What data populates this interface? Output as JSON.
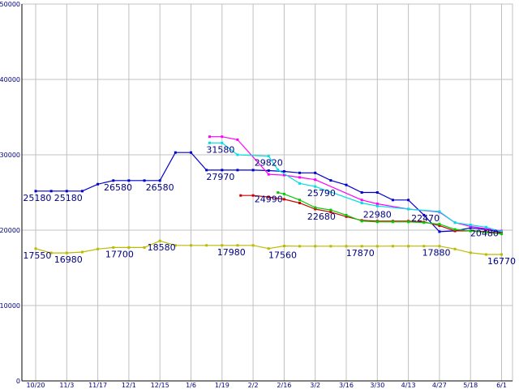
{
  "chart_data": {
    "type": "line",
    "ylim": [
      0,
      50000
    ],
    "grid": true,
    "yticks": [
      0,
      10000,
      20000,
      30000,
      40000,
      50000
    ],
    "xtick_labels": [
      "10/20",
      "11/3",
      "11/17",
      "12/1",
      "12/15",
      "1/6",
      "1/19",
      "2/2",
      "2/16",
      "3/2",
      "3/16",
      "3/30",
      "4/13",
      "4/27",
      "5/18",
      "6/1"
    ],
    "series": [
      {
        "color": "#0000cc",
        "x": [
          0,
          0.5,
          1,
          1.5,
          2,
          2.5,
          3,
          3.5,
          4,
          4.5,
          5,
          5.5,
          6,
          6.5,
          7,
          7.5,
          8,
          8.5,
          9,
          9.5,
          10,
          10.5,
          11,
          11.5,
          12,
          12.5,
          13,
          13.5,
          14,
          14.5,
          15
        ],
        "values": [
          25180,
          25180,
          25180,
          25180,
          26100,
          26580,
          26580,
          26580,
          26580,
          30300,
          30300,
          27970,
          27970,
          27970,
          27970,
          27900,
          27800,
          27600,
          27600,
          26600,
          26000,
          25000,
          25000,
          24000,
          24000,
          22000,
          19800,
          19900,
          20300,
          20100,
          19700
        ]
      },
      {
        "color": "#ff00ff",
        "x": [
          5.6,
          6.0,
          6.5,
          7.5,
          8.0,
          8.5,
          9.0,
          10.5,
          11.0,
          12.0,
          13.0,
          13.5,
          14.0,
          14.5,
          15.0
        ],
        "values": [
          32400,
          32400,
          32000,
          27400,
          27300,
          27000,
          26700,
          24000,
          23500,
          22800,
          22400,
          21000,
          20500,
          20200,
          19900
        ]
      },
      {
        "color": "#00e0e0",
        "x": [
          5.6,
          6.0,
          6.5,
          7.5,
          7.8,
          8.5,
          9.0,
          10.5,
          11.0,
          12.0,
          13.0,
          13.5,
          14.0,
          14.5,
          15.0
        ],
        "values": [
          31580,
          31580,
          30000,
          29820,
          28000,
          26200,
          25790,
          23600,
          23200,
          22800,
          22470,
          21000,
          20700,
          20400,
          19800
        ]
      },
      {
        "color": "#cc0000",
        "x": [
          6.6,
          7.0,
          7.5,
          8.0,
          8.5,
          9.0,
          9.5,
          10.0,
          10.5,
          11.0,
          11.5,
          12.0,
          12.5,
          13.0,
          13.5,
          14.0,
          14.5,
          15.0
        ],
        "values": [
          24600,
          24600,
          24400,
          24100,
          23600,
          22800,
          22400,
          21800,
          21300,
          21200,
          21200,
          21200,
          21100,
          20600,
          19900,
          19900,
          19800,
          19600
        ]
      },
      {
        "color": "#00cc00",
        "x": [
          7.8,
          8.0,
          8.5,
          9.0,
          9.5,
          10.0,
          10.5,
          11.0,
          11.5,
          12.0,
          12.5,
          13.0,
          13.5,
          14.0,
          14.5,
          15.0
        ],
        "values": [
          24990,
          24800,
          24000,
          23000,
          22680,
          22000,
          21200,
          21100,
          21100,
          21100,
          21000,
          20800,
          20100,
          19900,
          19700,
          19500
        ]
      },
      {
        "color": "#bbbb00",
        "x": [
          0,
          0.5,
          1,
          1.5,
          2,
          2.5,
          3,
          3.5,
          4,
          4.5,
          5,
          5.5,
          6,
          6.5,
          7,
          7.5,
          8,
          8.5,
          9,
          9.5,
          10,
          10.5,
          11,
          11.5,
          12,
          12.5,
          13,
          13.5,
          14,
          14.5,
          15
        ],
        "values": [
          17550,
          16980,
          16980,
          17100,
          17500,
          17700,
          17700,
          17700,
          18580,
          17980,
          17980,
          17980,
          17980,
          17980,
          17980,
          17560,
          17900,
          17870,
          17870,
          17870,
          17870,
          17870,
          17870,
          17880,
          17880,
          17880,
          17880,
          17500,
          17000,
          16770,
          16770
        ]
      }
    ],
    "data_labels": [
      {
        "x": 0.05,
        "y": 25180,
        "text": "25180"
      },
      {
        "x": 1.05,
        "y": 25180,
        "text": "25180"
      },
      {
        "x": 2.65,
        "y": 26580,
        "text": "26580"
      },
      {
        "x": 4.0,
        "y": 26580,
        "text": "26580"
      },
      {
        "x": 5.95,
        "y": 31580,
        "text": "31580"
      },
      {
        "x": 5.95,
        "y": 27970,
        "text": "27970"
      },
      {
        "x": 7.5,
        "y": 29820,
        "text": "29820"
      },
      {
        "x": 7.5,
        "y": 24990,
        "text": "24990"
      },
      {
        "x": 9.2,
        "y": 25790,
        "text": "25790"
      },
      {
        "x": 9.2,
        "y": 22680,
        "text": "22680"
      },
      {
        "x": 11.0,
        "y": 22980,
        "text": "22980"
      },
      {
        "x": 12.55,
        "y": 22470,
        "text": "22470"
      },
      {
        "x": 14.45,
        "y": 20480,
        "text": "20480"
      },
      {
        "x": 0.05,
        "y": 17550,
        "text": "17550"
      },
      {
        "x": 1.05,
        "y": 16980,
        "text": "16980"
      },
      {
        "x": 2.7,
        "y": 17700,
        "text": "17700"
      },
      {
        "x": 4.05,
        "y": 18580,
        "text": "18580"
      },
      {
        "x": 6.3,
        "y": 17980,
        "text": "17980"
      },
      {
        "x": 7.95,
        "y": 17560,
        "text": "17560"
      },
      {
        "x": 10.45,
        "y": 17870,
        "text": "17870"
      },
      {
        "x": 12.9,
        "y": 17880,
        "text": "17880"
      },
      {
        "x": 15.0,
        "y": 16770,
        "text": "16770"
      }
    ]
  }
}
